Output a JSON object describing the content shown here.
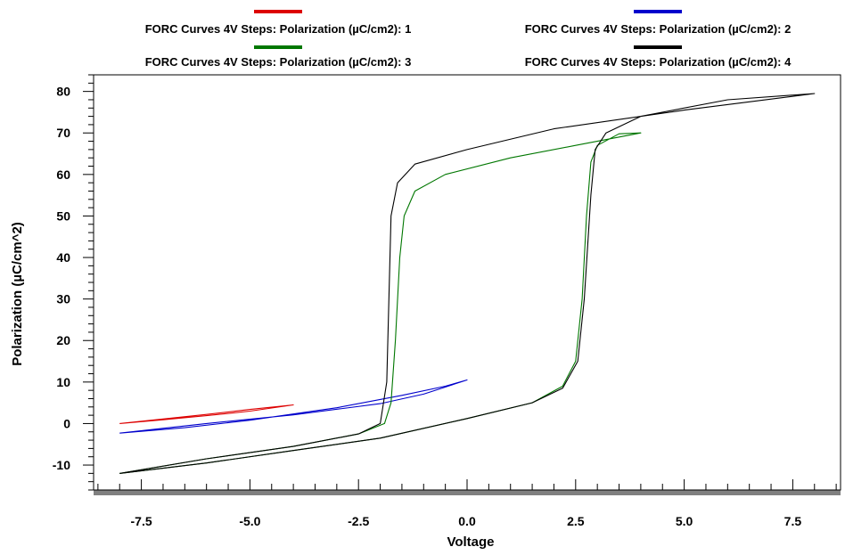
{
  "chart_data": {
    "type": "line",
    "title": "",
    "xlabel": "Voltage",
    "ylabel": "Polarization (µC/cm^2)",
    "xlim": [
      -8.6,
      8.6
    ],
    "ylim": [
      -16,
      84
    ],
    "x_ticks": [
      -7.5,
      -5.0,
      -2.5,
      0.0,
      2.5,
      5.0,
      7.5
    ],
    "x_tick_labels": [
      "-7.5",
      "-5.0",
      "-2.5",
      "0.0",
      "2.5",
      "5.0",
      "7.5"
    ],
    "y_ticks": [
      -10,
      0,
      10,
      20,
      30,
      40,
      50,
      60,
      70,
      80
    ],
    "y_tick_labels": [
      "-10",
      "0",
      "10",
      "20",
      "30",
      "40",
      "50",
      "60",
      "70",
      "80"
    ],
    "grid": false,
    "legend_position": "top",
    "series": [
      {
        "name": "FORC Curves 4V Steps: Polarization (µC/cm2): 1",
        "color": "#dd0000",
        "points": [
          [
            -8,
            0
          ],
          [
            -7,
            0.9
          ],
          [
            -6,
            1.9
          ],
          [
            -5,
            3.0
          ],
          [
            -4,
            4.5
          ],
          [
            -5,
            3.4
          ],
          [
            -6,
            2.2
          ],
          [
            -7,
            1.1
          ],
          [
            -8,
            0
          ]
        ]
      },
      {
        "name": "FORC Curves 4V Steps: Polarization (µC/cm2): 2",
        "color": "#0000cc",
        "points": [
          [
            -8,
            -2.3
          ],
          [
            -6,
            0
          ],
          [
            -4,
            2.1
          ],
          [
            -2,
            4.8
          ],
          [
            -1,
            7.1
          ],
          [
            0,
            10.5
          ],
          [
            -0.5,
            9.0
          ],
          [
            -1.5,
            6.8
          ],
          [
            -3,
            3.8
          ],
          [
            -5,
            0.8
          ],
          [
            -6.5,
            -1.0
          ],
          [
            -8,
            -2.3
          ]
        ]
      },
      {
        "name": "FORC Curves 4V Steps: Polarization (µC/cm2): 3",
        "color": "#007700",
        "points": [
          [
            -8,
            -12
          ],
          [
            -6,
            -8.5
          ],
          [
            -4,
            -5.5
          ],
          [
            -2.5,
            -2.5
          ],
          [
            -1.9,
            0
          ],
          [
            -1.75,
            5
          ],
          [
            -1.65,
            20
          ],
          [
            -1.55,
            40
          ],
          [
            -1.45,
            50
          ],
          [
            -1.2,
            56
          ],
          [
            -0.5,
            60
          ],
          [
            1,
            64
          ],
          [
            2.5,
            67
          ],
          [
            4,
            70
          ],
          [
            3.5,
            69.8
          ],
          [
            3.0,
            67
          ],
          [
            2.85,
            63
          ],
          [
            2.75,
            50
          ],
          [
            2.65,
            30
          ],
          [
            2.5,
            15
          ],
          [
            2.2,
            9
          ],
          [
            1.5,
            5
          ],
          [
            0,
            1.2
          ],
          [
            -2,
            -3.5
          ],
          [
            -4,
            -6.5
          ],
          [
            -6,
            -9.5
          ],
          [
            -8,
            -12
          ]
        ]
      },
      {
        "name": "FORC Curves 4V Steps: Polarization (µC/cm2): 4",
        "color": "#000000",
        "points": [
          [
            -8,
            -12
          ],
          [
            -6,
            -8.5
          ],
          [
            -4,
            -5.5
          ],
          [
            -2.5,
            -2.5
          ],
          [
            -2.0,
            0
          ],
          [
            -1.85,
            10
          ],
          [
            -1.8,
            30
          ],
          [
            -1.75,
            50
          ],
          [
            -1.6,
            58
          ],
          [
            -1.2,
            62.5
          ],
          [
            0,
            66
          ],
          [
            2,
            71
          ],
          [
            5,
            75.5
          ],
          [
            8,
            79.5
          ],
          [
            6,
            78
          ],
          [
            4,
            74
          ],
          [
            3.2,
            70
          ],
          [
            2.95,
            66
          ],
          [
            2.85,
            55
          ],
          [
            2.7,
            30
          ],
          [
            2.55,
            15
          ],
          [
            2.2,
            8.5
          ],
          [
            1.5,
            5
          ],
          [
            0,
            1.2
          ],
          [
            -2,
            -3.5
          ],
          [
            -4,
            -6.5
          ],
          [
            -6,
            -9.5
          ],
          [
            -8,
            -12
          ]
        ]
      }
    ]
  }
}
